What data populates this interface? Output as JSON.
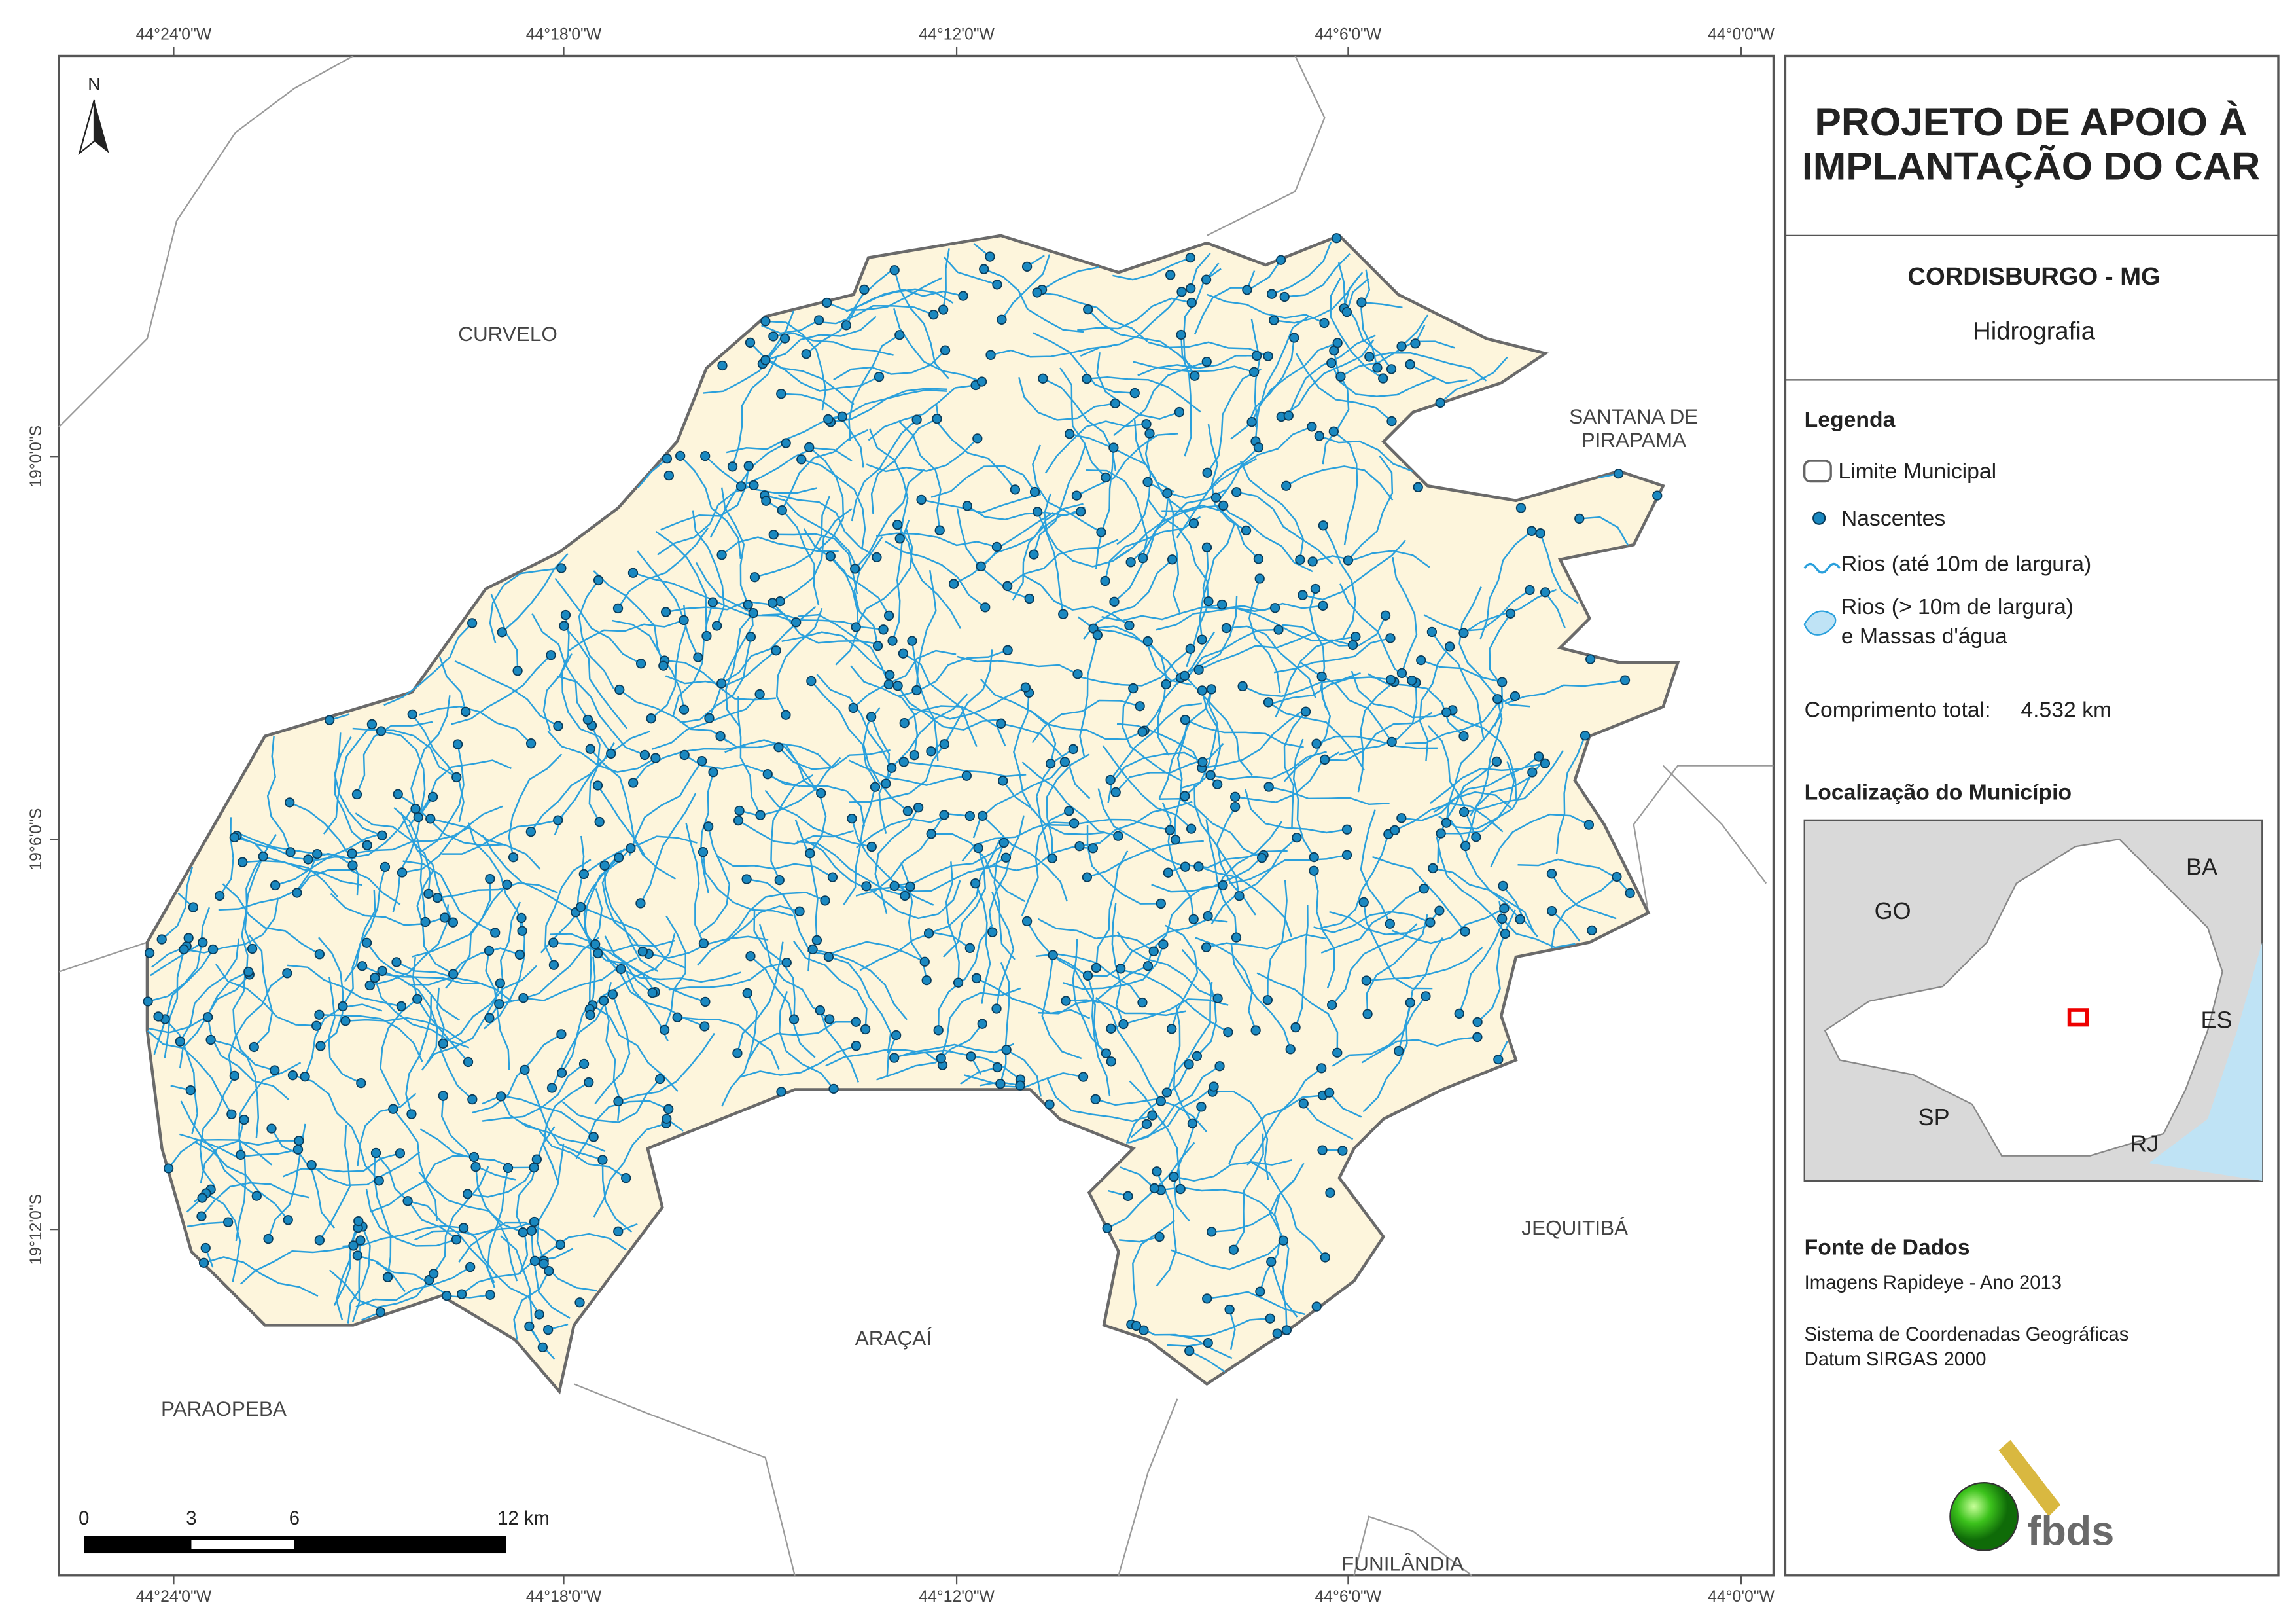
{
  "header": {
    "title_lines": [
      "PROJETO DE APOIO À",
      "IMPLANTAÇÃO DO CAR"
    ]
  },
  "subheader": {
    "municipality": "CORDISBURGO - MG",
    "theme": "Hidrografia"
  },
  "legend": {
    "title": "Legenda",
    "items": [
      "Limite Municipal",
      "Nascentes",
      "Rios (até 10m de largura)",
      "Rios (> 10m de largura)",
      "e Massas d'água"
    ],
    "total_length_label": "Comprimento total:",
    "total_length_value": "4.532 km"
  },
  "location": {
    "title": "Localização do Município",
    "labels": [
      "BA",
      "GO",
      "ES",
      "SP",
      "RJ"
    ]
  },
  "sources": {
    "title": "Fonte de Dados",
    "lines": [
      "Imagens Rapideye - Ano 2013",
      "Sistema de Coordenadas Geográficas",
      "Datum SIRGAS 2000"
    ]
  },
  "logo": "fbds",
  "map": {
    "north": "N",
    "lon_ticks": [
      "44°24'0\"W",
      "44°18'0\"W",
      "44°12'0\"W",
      "44°6'0\"W",
      "44°0'0\"W"
    ],
    "lat_ticks": [
      "19°0'0\"S",
      "19°6'0\"S",
      "19°12'0\"S"
    ],
    "places": [
      "CURVELO",
      "SANTANA DE",
      "PIRAPAMA",
      "JEQUITIBÁ",
      "ARAÇAÍ",
      "PARAOPEBA",
      "FUNILÂNDIA"
    ],
    "scale_bar": [
      "0",
      "3",
      "6",
      "12 km"
    ]
  }
}
